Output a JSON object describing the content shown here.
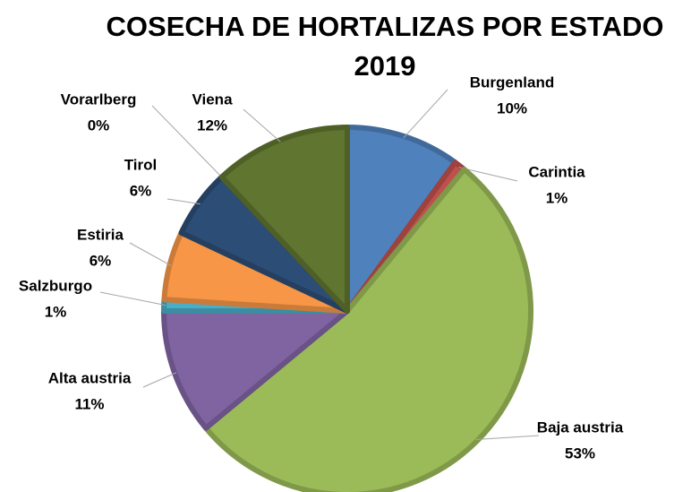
{
  "chart_data": {
    "type": "pie",
    "title": "COSECHA DE HORTALIZAS POR ESTADO 2019",
    "categories": [
      "Burgenland",
      "Carintia",
      "Baja austria",
      "Alta austria",
      "Salzburgo",
      "Estiria",
      "Tirol",
      "Vorarlberg",
      "Viena"
    ],
    "values": [
      10,
      1,
      53,
      11,
      1,
      6,
      6,
      0,
      12
    ],
    "value_labels": [
      "10%",
      "1%",
      "53%",
      "11%",
      "1%",
      "6%",
      "6%",
      "0%",
      "12%"
    ],
    "colors": [
      "#4f81bd",
      "#c0504d",
      "#9bbb59",
      "#8064a2",
      "#4bacc6",
      "#f79646",
      "#2c4d75",
      "#772c2a",
      "#5f7530"
    ]
  }
}
